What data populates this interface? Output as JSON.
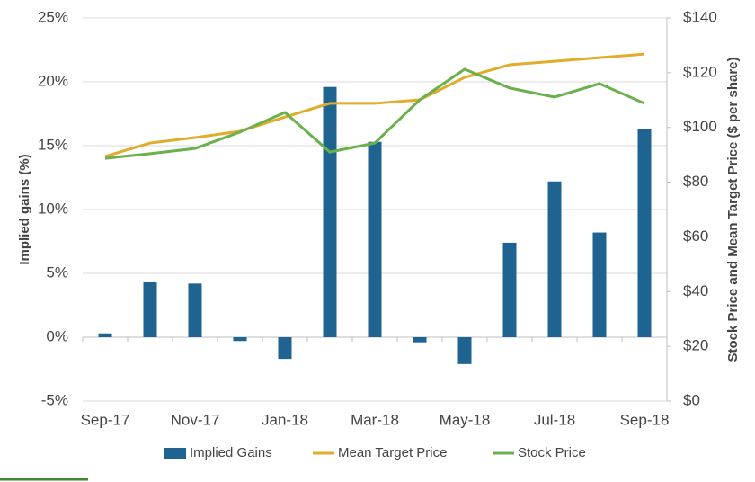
{
  "chart_data": {
    "type": "bar-line",
    "y_label": "Implied gains (%)",
    "y2_label": "Stock Price and Mean Target Price ($ per share)",
    "categories": [
      "Sep-17",
      null,
      "Nov-17",
      null,
      "Jan-18",
      null,
      "Mar-18",
      null,
      "May-18",
      null,
      "Jul-18",
      null,
      "Sep-18"
    ],
    "series": [
      {
        "name": "Implied Gains",
        "type": "bar",
        "color": "#1f6391",
        "axis": "y",
        "values": [
          0.3,
          4.3,
          4.2,
          -0.3,
          -1.7,
          19.6,
          15.3,
          -0.4,
          -2.1,
          7.4,
          12.2,
          8.2,
          16.3
        ]
      },
      {
        "name": "Mean Target Price",
        "type": "line",
        "color": "#e0ac2b",
        "axis": "y2",
        "values": [
          89.4,
          94.3,
          96.3,
          98.6,
          103.8,
          108.8,
          108.8,
          110.1,
          118.3,
          122.9,
          124.2,
          125.5,
          126.8
        ]
      },
      {
        "name": "Stock Price",
        "type": "line",
        "color": "#6ab04c",
        "axis": "y2",
        "values": [
          88.7,
          90.4,
          92.3,
          98.3,
          105.5,
          91.0,
          94.3,
          110.1,
          121.3,
          114.4,
          111.1,
          116.0,
          108.8
        ]
      }
    ],
    "ylim": [
      -5,
      25
    ],
    "yticks": [
      {
        "value": -5,
        "label": "-5%"
      },
      {
        "value": 0,
        "label": "0%"
      },
      {
        "value": 5,
        "label": "5%"
      },
      {
        "value": 10,
        "label": "10%"
      },
      {
        "value": 15,
        "label": "15%"
      },
      {
        "value": 20,
        "label": "20%"
      },
      {
        "value": 25,
        "label": "25%"
      }
    ],
    "y2lim": [
      0,
      140
    ],
    "y2ticks": [
      {
        "value": 0,
        "label": "$0"
      },
      {
        "value": 20,
        "label": "$20"
      },
      {
        "value": 40,
        "label": "$40"
      },
      {
        "value": 60,
        "label": "$60"
      },
      {
        "value": 80,
        "label": "$80"
      },
      {
        "value": 100,
        "label": "$100"
      },
      {
        "value": 120,
        "label": "$120"
      },
      {
        "value": 140,
        "label": "$140"
      }
    ],
    "grid": true,
    "legend": "bottom"
  }
}
